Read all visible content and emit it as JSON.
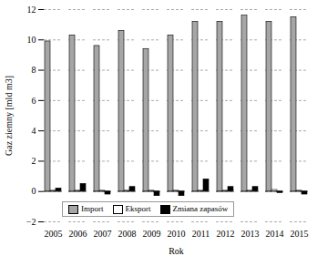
{
  "chart_data": {
    "type": "bar",
    "x_label": "Rok",
    "y_label": "Gaz ziemny [mld m3]",
    "categories": [
      "2005",
      "2006",
      "2007",
      "2008",
      "2009",
      "2010",
      "2011",
      "2012",
      "2013",
      "2014",
      "2015"
    ],
    "series": [
      {
        "name": "Import",
        "color": "#a6a6a6",
        "values": [
          9.9,
          10.3,
          9.6,
          10.6,
          9.4,
          10.3,
          11.2,
          11.2,
          11.6,
          11.2,
          11.5
        ]
      },
      {
        "name": "Eksport",
        "color": "#ffffff",
        "values": [
          0.05,
          0.05,
          0.05,
          0.05,
          0.05,
          0.05,
          0.05,
          0.05,
          0.05,
          0.1,
          0.05
        ]
      },
      {
        "name": "Zmiana zapasów",
        "color": "#000000",
        "values": [
          0.2,
          0.5,
          -0.2,
          0.3,
          -0.3,
          -0.3,
          0.8,
          0.3,
          0.3,
          -0.1,
          -0.2
        ]
      }
    ],
    "ylim": [
      -2,
      12
    ],
    "yticks": [
      -2,
      0,
      2,
      4,
      6,
      8,
      10,
      12
    ],
    "grid": true,
    "legend": "lower center"
  }
}
